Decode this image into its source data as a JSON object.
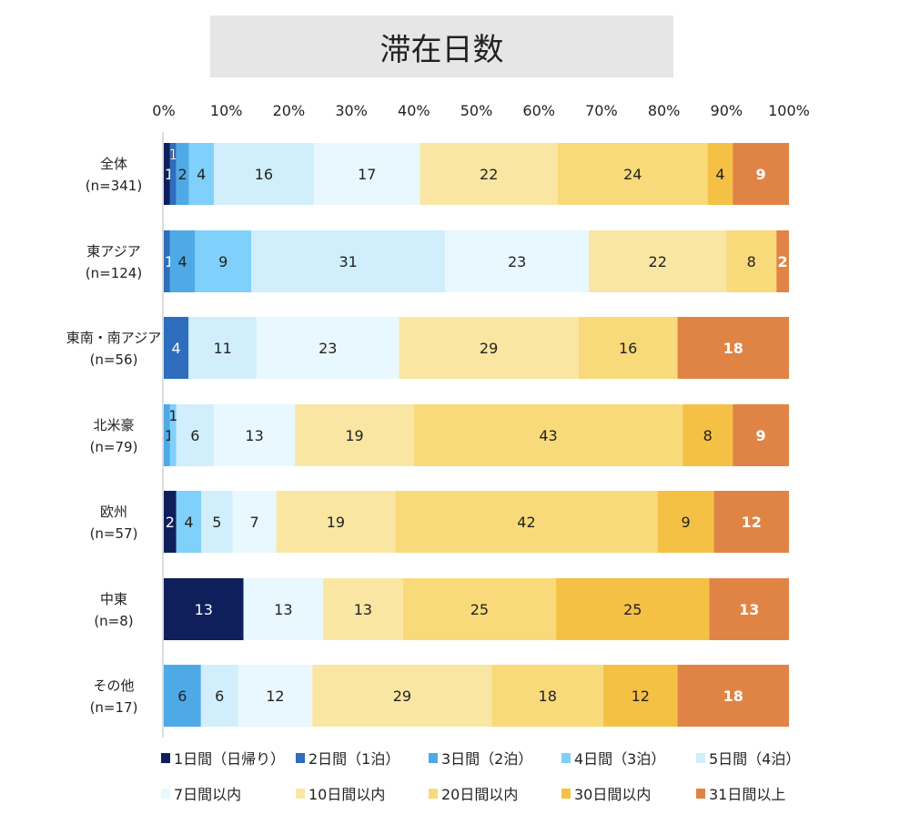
{
  "chart_data": {
    "type": "bar",
    "orientation": "horizontal",
    "stacked": true,
    "percent_stacked": true,
    "title": "滞在日数",
    "xlim": [
      0,
      100
    ],
    "x_ticks": [
      "0%",
      "10%",
      "20%",
      "30%",
      "40%",
      "50%",
      "60%",
      "70%",
      "80%",
      "90%",
      "100%"
    ],
    "x_tick_values": [
      0,
      10,
      20,
      30,
      40,
      50,
      60,
      70,
      80,
      90,
      100
    ],
    "grid": false,
    "legend_position": "bottom",
    "categories": [
      {
        "name": "全体",
        "n": "(n=341)"
      },
      {
        "name": "東アジア",
        "n": "(n=124)"
      },
      {
        "name": "東南・南アジア",
        "n": "(n=56)"
      },
      {
        "name": "北米豪",
        "n": "(n=79)"
      },
      {
        "name": "欧州",
        "n": "(n=57)"
      },
      {
        "name": "中東",
        "n": "(n=8)"
      },
      {
        "name": "その他",
        "n": "(n=17)"
      }
    ],
    "series": [
      {
        "name": "1日間（日帰り）",
        "color": "#0e1f5b",
        "values": [
          1,
          0,
          0,
          0,
          2,
          13,
          0
        ]
      },
      {
        "name": "2日間（1泊）",
        "color": "#2e6dbd",
        "values": [
          1,
          1,
          4,
          0,
          0,
          0,
          0
        ]
      },
      {
        "name": "3日間（2泊）",
        "color": "#4eaae6",
        "values": [
          2,
          4,
          0,
          1,
          0,
          0,
          6
        ]
      },
      {
        "name": "4日間（3泊）",
        "color": "#7fd0fa",
        "values": [
          4,
          9,
          0,
          1,
          4,
          0,
          0
        ]
      },
      {
        "name": "5日間（4泊）",
        "color": "#d1eefc",
        "values": [
          16,
          31,
          11,
          6,
          5,
          0,
          6
        ]
      },
      {
        "name": "7日間以内",
        "color": "#e9f8fe",
        "values": [
          17,
          23,
          23,
          13,
          7,
          13,
          12
        ]
      },
      {
        "name": "10日間以内",
        "color": "#fae6a3",
        "values": [
          22,
          22,
          29,
          19,
          19,
          13,
          29
        ]
      },
      {
        "name": "20日間以内",
        "color": "#f8da7a",
        "values": [
          24,
          8,
          16,
          43,
          42,
          25,
          18
        ]
      },
      {
        "name": "30日間以内",
        "color": "#f4c145",
        "values": [
          4,
          0,
          0,
          8,
          9,
          25,
          12
        ]
      },
      {
        "name": "31日間以上",
        "color": "#e08445",
        "values": [
          9,
          2,
          18,
          9,
          12,
          13,
          18
        ]
      }
    ]
  }
}
